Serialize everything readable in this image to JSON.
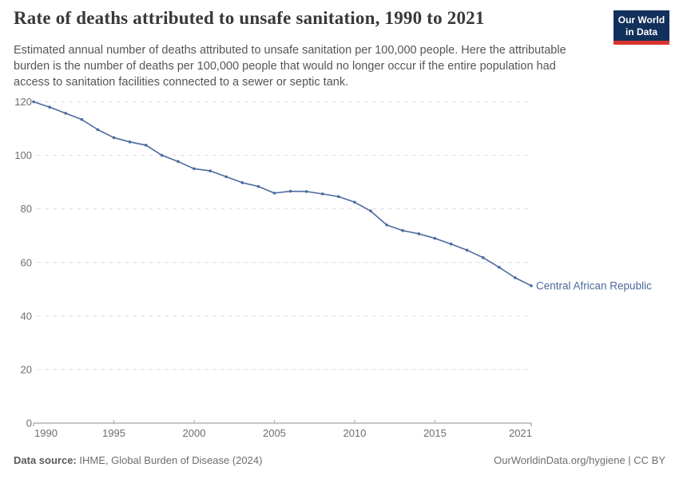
{
  "header": {
    "title": "Rate of deaths attributed to unsafe sanitation, 1990 to 2021",
    "subtitle": "Estimated annual number of deaths attributed to unsafe sanitation per 100,000 people. Here the attributable burden is the number of deaths per 100,000 people that would no longer occur if the entire population had access to sanitation facilities connected to a sewer or septic tank.",
    "logo": {
      "line1": "Our World",
      "line2": "in Data",
      "bg_color": "#12305c",
      "bar_color": "#d8352e"
    }
  },
  "chart_data": {
    "type": "line",
    "title": "Rate of deaths attributed to unsafe sanitation, 1990 to 2021",
    "xlabel": "",
    "ylabel": "",
    "xlim": [
      1990,
      2021
    ],
    "ylim": [
      0,
      120
    ],
    "xticks": [
      1990,
      1995,
      2000,
      2005,
      2010,
      2015,
      2021
    ],
    "yticks": [
      0,
      20,
      40,
      60,
      80,
      100,
      120
    ],
    "grid": "horizontal-dashed",
    "legend": "end-of-line-label",
    "x": [
      1990,
      1991,
      1992,
      1993,
      1994,
      1995,
      1996,
      1997,
      1998,
      1999,
      2000,
      2001,
      2002,
      2003,
      2004,
      2005,
      2006,
      2007,
      2008,
      2009,
      2010,
      2011,
      2012,
      2013,
      2014,
      2015,
      2016,
      2017,
      2018,
      2019,
      2020,
      2021
    ],
    "series": [
      {
        "name": "Central African Republic",
        "color": "#4c6a9e",
        "values": [
          120.0,
          118.0,
          115.7,
          113.4,
          109.6,
          106.6,
          105.0,
          103.8,
          100.0,
          97.7,
          95.0,
          94.2,
          92.0,
          89.8,
          88.4,
          85.9,
          86.6,
          86.5,
          85.6,
          84.6,
          82.5,
          79.2,
          74.0,
          71.9,
          70.7,
          69.0,
          66.9,
          64.6,
          61.8,
          58.2,
          54.3,
          51.3
        ]
      }
    ]
  },
  "footer": {
    "source_label": "Data source:",
    "source_value": "IHME, Global Burden of Disease (2024)",
    "credit": "OurWorldinData.org/hygiene | CC BY"
  },
  "colors": {
    "line": "#4c6a9e",
    "title_text": "#3a3838",
    "subtitle_text": "#555555",
    "tick_text": "#6e6e6e",
    "gridline": "#dcdcdc",
    "axis": "#8f8f8f"
  }
}
